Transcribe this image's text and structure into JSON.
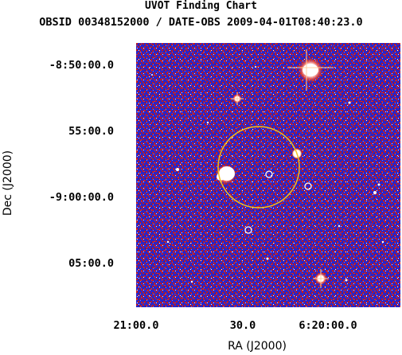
{
  "header": {
    "title": "UVOT Finding Chart",
    "obs_line": "OBSID 00348152000 / DATE-OBS 2009-04-01T08:40:23.0"
  },
  "axes": {
    "xlabel": "RA (J2000)",
    "ylabel": "Dec (J2000)",
    "x_ticks": [
      "21:00.0",
      "30.0",
      "6:20:00.0"
    ],
    "y_ticks": [
      "-8:50:00.0",
      "55:00.0",
      "-9:00:00.0",
      "05:00.0"
    ]
  },
  "colors": {
    "background_red": "#c41a1a",
    "background_blue": "#2a24c8",
    "star": "#ffffff",
    "error_circle": "#f0c020"
  }
}
